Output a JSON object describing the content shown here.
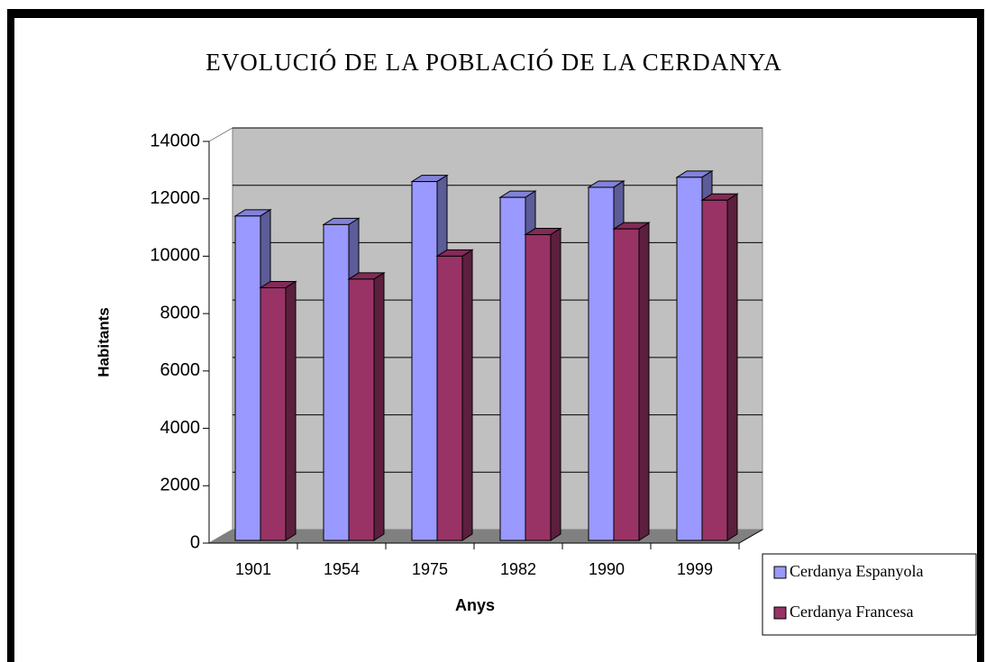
{
  "chart_data": {
    "type": "bar3d",
    "title": "EVOLUCIÓ DE LA POBLACIÓ DE LA CERDANYA",
    "x_label": "Anys",
    "y_label": "Habitants",
    "categories": [
      "1901",
      "1954",
      "1975",
      "1982",
      "1990",
      "1999"
    ],
    "series": [
      {
        "name": "Cerdanya Espanyola",
        "color": "#9999ff",
        "values": [
          11400,
          11100,
          12600,
          12050,
          12400,
          12750
        ]
      },
      {
        "name": "Cerdanya Francesa",
        "color": "#993366",
        "values": [
          8900,
          9200,
          10000,
          10750,
          10950,
          11950
        ]
      }
    ],
    "ylim": [
      0,
      14000
    ],
    "yticks": [
      0,
      2000,
      4000,
      6000,
      8000,
      10000,
      12000,
      14000
    ],
    "grid": true,
    "legend": "bottom-right"
  }
}
